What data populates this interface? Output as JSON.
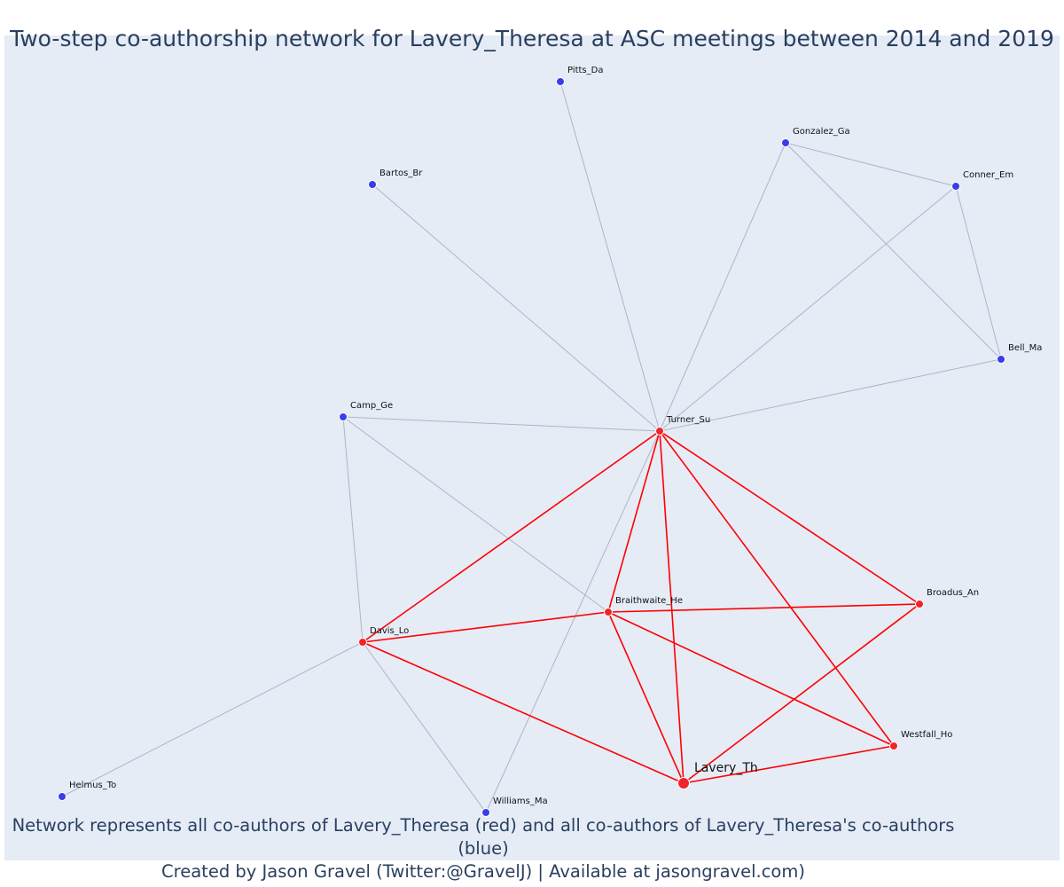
{
  "title": "Two-step co-authorship network for Lavery_Theresa at ASC meetings between 2014 and 2019",
  "caption": {
    "line1": "Network represents all co-authors of Lavery_Theresa (red) and all co-authors of Lavery_Theresa's co-authors (blue)",
    "line2": "Created by Jason Gravel (Twitter:@GravelJ) | Available at jasongravel.com)"
  },
  "colors": {
    "background": "#e5ecf6",
    "red_node": "#f0242b",
    "blue_node": "#3a3ee8",
    "red_edge": "#ff0000",
    "grey_edge": "#b0b4c4",
    "text": "#2a3f5f"
  },
  "nodes": [
    {
      "id": "Lavery_Th",
      "group": "focal"
    },
    {
      "id": "Turner_Su",
      "group": "coauthor"
    },
    {
      "id": "Braithwaite_He",
      "group": "coauthor"
    },
    {
      "id": "Davis_Lo",
      "group": "coauthor"
    },
    {
      "id": "Broadus_An",
      "group": "coauthor"
    },
    {
      "id": "Westfall_Ho",
      "group": "coauthor"
    },
    {
      "id": "Pitts_Da",
      "group": "second"
    },
    {
      "id": "Gonzalez_Ga",
      "group": "second"
    },
    {
      "id": "Conner_Em",
      "group": "second"
    },
    {
      "id": "Bartos_Br",
      "group": "second"
    },
    {
      "id": "Bell_Ma",
      "group": "second"
    },
    {
      "id": "Camp_Ge",
      "group": "second"
    },
    {
      "id": "Helmus_To",
      "group": "second"
    },
    {
      "id": "Williams_Ma",
      "group": "second"
    }
  ],
  "edges": [
    {
      "source": "Turner_Su",
      "target": "Davis_Lo",
      "type": "red"
    },
    {
      "source": "Turner_Su",
      "target": "Braithwaite_He",
      "type": "red"
    },
    {
      "source": "Turner_Su",
      "target": "Lavery_Th",
      "type": "red"
    },
    {
      "source": "Turner_Su",
      "target": "Broadus_An",
      "type": "red"
    },
    {
      "source": "Turner_Su",
      "target": "Westfall_Ho",
      "type": "red"
    },
    {
      "source": "Davis_Lo",
      "target": "Braithwaite_He",
      "type": "red"
    },
    {
      "source": "Davis_Lo",
      "target": "Lavery_Th",
      "type": "red"
    },
    {
      "source": "Braithwaite_He",
      "target": "Broadus_An",
      "type": "red"
    },
    {
      "source": "Braithwaite_He",
      "target": "Lavery_Th",
      "type": "red"
    },
    {
      "source": "Braithwaite_He",
      "target": "Westfall_Ho",
      "type": "red"
    },
    {
      "source": "Broadus_An",
      "target": "Lavery_Th",
      "type": "red"
    },
    {
      "source": "Westfall_Ho",
      "target": "Lavery_Th",
      "type": "red"
    },
    {
      "source": "Turner_Su",
      "target": "Pitts_Da",
      "type": "grey"
    },
    {
      "source": "Turner_Su",
      "target": "Gonzalez_Ga",
      "type": "grey"
    },
    {
      "source": "Turner_Su",
      "target": "Conner_Em",
      "type": "grey"
    },
    {
      "source": "Turner_Su",
      "target": "Bartos_Br",
      "type": "grey"
    },
    {
      "source": "Turner_Su",
      "target": "Bell_Ma",
      "type": "grey"
    },
    {
      "source": "Turner_Su",
      "target": "Camp_Ge",
      "type": "grey"
    },
    {
      "source": "Turner_Su",
      "target": "Williams_Ma",
      "type": "grey"
    },
    {
      "source": "Gonzalez_Ga",
      "target": "Conner_Em",
      "type": "grey"
    },
    {
      "source": "Gonzalez_Ga",
      "target": "Bell_Ma",
      "type": "grey"
    },
    {
      "source": "Conner_Em",
      "target": "Bell_Ma",
      "type": "grey"
    },
    {
      "source": "Camp_Ge",
      "target": "Davis_Lo",
      "type": "grey"
    },
    {
      "source": "Camp_Ge",
      "target": "Braithwaite_He",
      "type": "grey"
    },
    {
      "source": "Davis_Lo",
      "target": "Helmus_To",
      "type": "grey"
    },
    {
      "source": "Davis_Lo",
      "target": "Williams_Ma",
      "type": "grey"
    }
  ]
}
